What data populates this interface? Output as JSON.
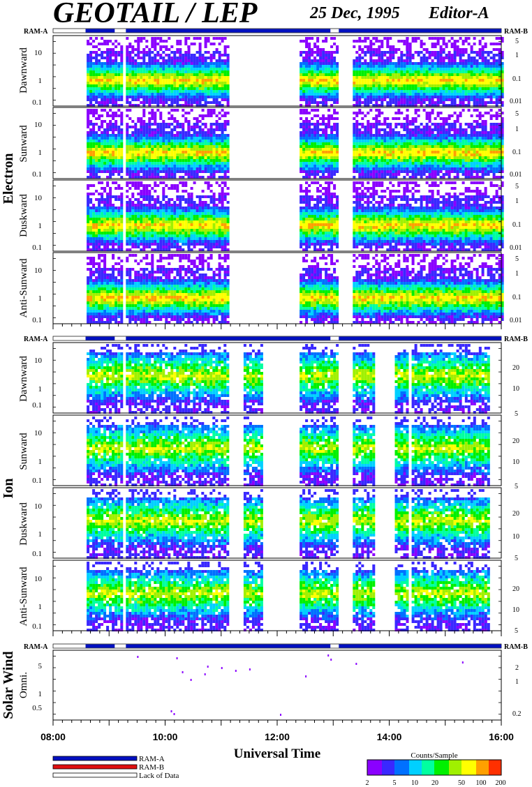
{
  "header": {
    "title": "GEOTAIL / LEP",
    "date": "25 Dec, 1995",
    "editor": "Editor-A"
  },
  "colors": {
    "ram_a": "#0010c0",
    "ram_b": "#e01010",
    "spectrum": [
      "#8a00ff",
      "#3a28ff",
      "#0070ff",
      "#00d0ff",
      "#00ffa0",
      "#00f000",
      "#a0f000",
      "#ffff00",
      "#ffa000",
      "#ff3000"
    ]
  },
  "chart_data": {
    "type": "heatmap",
    "xlabel": "Universal Time",
    "x_ticks": [
      "08:00",
      "10:00",
      "12:00",
      "14:00",
      "16:00"
    ],
    "xlim_hours": [
      8,
      16
    ],
    "groups": [
      {
        "name": "Electron",
        "ram_left": "RAM-A",
        "ram_right": "RAM-B",
        "left_ticks": [
          "10",
          "1",
          "0.1"
        ],
        "right_ticks": [
          "5",
          "1",
          "0.1",
          "0.01"
        ],
        "panels": [
          {
            "label": "Dawnward"
          },
          {
            "label": "Sunward"
          },
          {
            "label": "Duskward"
          },
          {
            "label": "Anti-Sunward"
          }
        ],
        "active_intervals_hours": [
          [
            8.6,
            9.1
          ],
          [
            9.15,
            9.2
          ],
          [
            9.3,
            10.4
          ],
          [
            10.4,
            11.1
          ],
          [
            12.4,
            12.5
          ],
          [
            12.5,
            13.05
          ],
          [
            13.35,
            14.3
          ],
          [
            14.3,
            16.0
          ]
        ]
      },
      {
        "name": "Ion",
        "ram_left": "RAM-A",
        "ram_right": "RAM-B",
        "left_ticks": [
          "10",
          "1",
          "0.1"
        ],
        "right_ticks": [
          "20",
          "10",
          "5"
        ],
        "panels": [
          {
            "label": "Dawnward"
          },
          {
            "label": "Sunward"
          },
          {
            "label": "Duskward"
          },
          {
            "label": "Anti-Sunward"
          }
        ],
        "active_intervals_hours": [
          [
            8.6,
            9.1
          ],
          [
            9.15,
            9.2
          ],
          [
            9.3,
            11.1
          ],
          [
            11.4,
            11.7
          ],
          [
            12.4,
            12.5
          ],
          [
            12.5,
            13.05
          ],
          [
            13.35,
            13.7
          ],
          [
            14.1,
            14.3
          ],
          [
            14.4,
            15.3
          ],
          [
            15.35,
            15.75
          ]
        ]
      },
      {
        "name": "Solar Wind",
        "ram_left": "RAM-A",
        "ram_right": "RAM-B",
        "left_ticks": [
          "5",
          "1",
          "0.5"
        ],
        "right_ticks": [
          "2",
          "1",
          "0.2"
        ],
        "panels": [
          {
            "label": "Omni."
          }
        ]
      }
    ],
    "legend": {
      "items": [
        "RAM-A",
        "RAM-B",
        "Lack of Data"
      ],
      "colorbar_title": "Counts/Sample",
      "colorbar_ticks": [
        "2",
        "5",
        "10",
        "20",
        "50",
        "100",
        "200"
      ]
    }
  }
}
